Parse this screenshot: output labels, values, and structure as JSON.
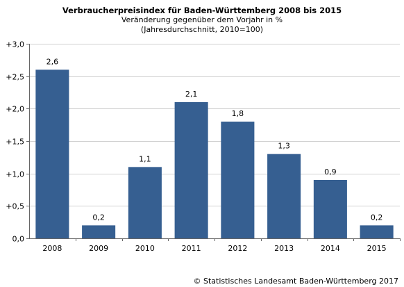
{
  "chart_data": {
    "type": "bar",
    "title": "Verbraucherpreisindex für Baden-Württemberg 2008 bis 2015",
    "subtitle_lines": [
      "Veränderung gegenüber dem Vorjahr in %",
      "(Jahresdurchschnitt, 2010=100)"
    ],
    "categories": [
      "2008",
      "2009",
      "2010",
      "2011",
      "2012",
      "2013",
      "2014",
      "2015"
    ],
    "values": [
      2.6,
      0.2,
      1.1,
      2.1,
      1.8,
      1.3,
      0.9,
      0.2
    ],
    "value_labels": [
      "2,6",
      "0,2",
      "1,1",
      "2,1",
      "1,8",
      "1,3",
      "0,9",
      "0,2"
    ],
    "y_ticks": [
      0,
      0.5,
      1.0,
      1.5,
      2.0,
      2.5,
      3.0
    ],
    "y_tick_labels": [
      "0,0",
      "+0,5",
      "+1,0",
      "+1,5",
      "+2,0",
      "+2,5",
      "+3,0"
    ],
    "ylim": [
      0,
      3.0
    ],
    "xlabel": "",
    "ylabel": "",
    "grid": true,
    "bar_color": "#365f91",
    "grid_color": "#d0d0d0"
  },
  "footer": {
    "copyright": "© Statistisches Landesamt Baden-Württemberg 2017"
  }
}
